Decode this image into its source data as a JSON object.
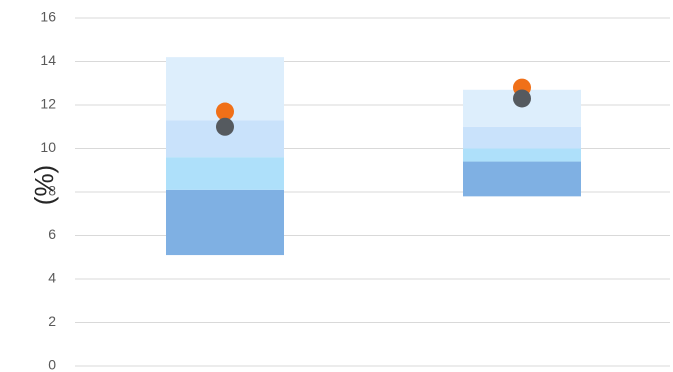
{
  "chart_data": {
    "type": "bar",
    "subtype": "floating-range-bands-with-markers",
    "title": "",
    "xlabel": "",
    "ylabel": "(%)",
    "ylim": [
      0,
      16
    ],
    "yticks": [
      0,
      2,
      4,
      6,
      8,
      10,
      12,
      14,
      16
    ],
    "grid": true,
    "legend": "none",
    "categories": [
      "",
      ""
    ],
    "bands": [
      {
        "color": "#7fb0e3",
        "ranges": [
          [
            5.1,
            8.1
          ],
          [
            7.8,
            9.4
          ]
        ]
      },
      {
        "color": "#aee0fa",
        "ranges": [
          [
            8.1,
            9.6
          ],
          [
            9.4,
            10.0
          ]
        ]
      },
      {
        "color": "#c9e2fb",
        "ranges": [
          [
            9.6,
            11.3
          ],
          [
            10.0,
            11.0
          ]
        ]
      },
      {
        "color": "#ddeefc",
        "ranges": [
          [
            11.3,
            14.2
          ],
          [
            11.0,
            12.7
          ]
        ]
      }
    ],
    "series": [
      {
        "color": "#f07018",
        "values": [
          11.7,
          12.8
        ]
      },
      {
        "color": "#555a5f",
        "values": [
          11.0,
          12.3
        ]
      }
    ]
  }
}
